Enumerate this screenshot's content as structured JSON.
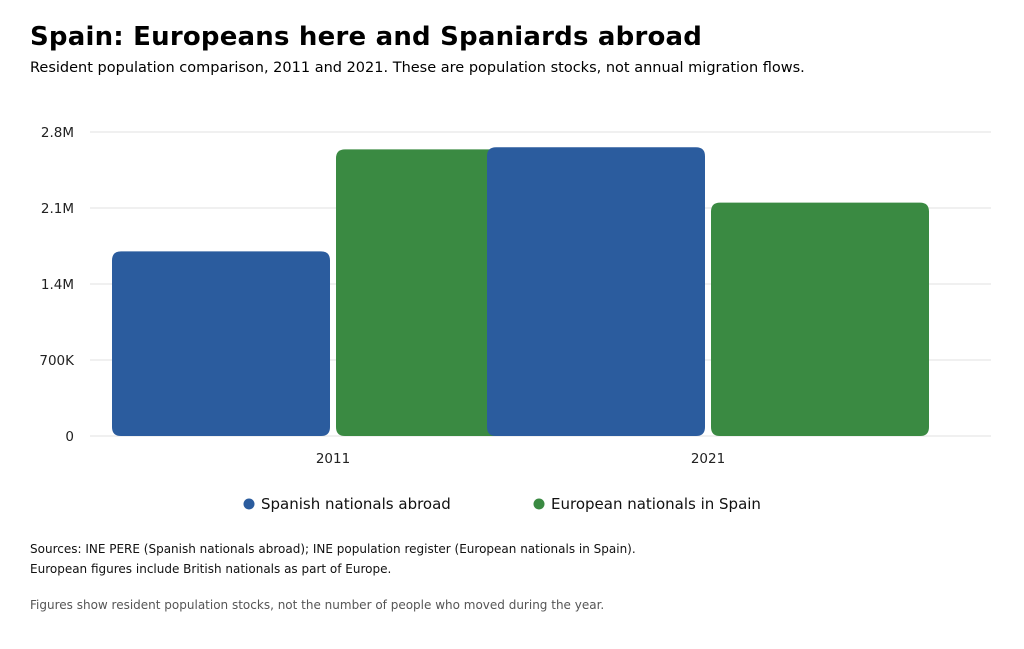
{
  "title": "Spain: Europeans here and Spaniards abroad",
  "subtitle": "Resident population comparison, 2011 and 2021. These are population stocks, not annual migration flows.",
  "colors": {
    "Spanish nationals abroad": "#2b5c9e",
    "European nationals in Spain": "#3a8a42",
    "grid": "#e2e2e2"
  },
  "chart_data": {
    "type": "bar",
    "categories": [
      "2011",
      "2021"
    ],
    "series": [
      {
        "name": "Spanish nationals abroad",
        "values": [
          1700000,
          2660000
        ]
      },
      {
        "name": "European nationals in Spain",
        "values": [
          2640000,
          2150000
        ]
      }
    ],
    "ylim": [
      0,
      2800000
    ],
    "yticks": [
      0,
      700000,
      1400000,
      2100000,
      2800000
    ],
    "ytick_labels": [
      "0",
      "700K",
      "1.4M",
      "2.1M",
      "2.8M"
    ],
    "grid": true,
    "legend_position": "bottom"
  },
  "notes": {
    "source_line1": "Sources: INE PERE (Spanish nationals abroad); INE population register (European nationals in Spain).",
    "source_line2": "European figures include British nationals as part of Europe.",
    "caption": "Figures show resident population stocks, not the number of people who moved during the year."
  }
}
